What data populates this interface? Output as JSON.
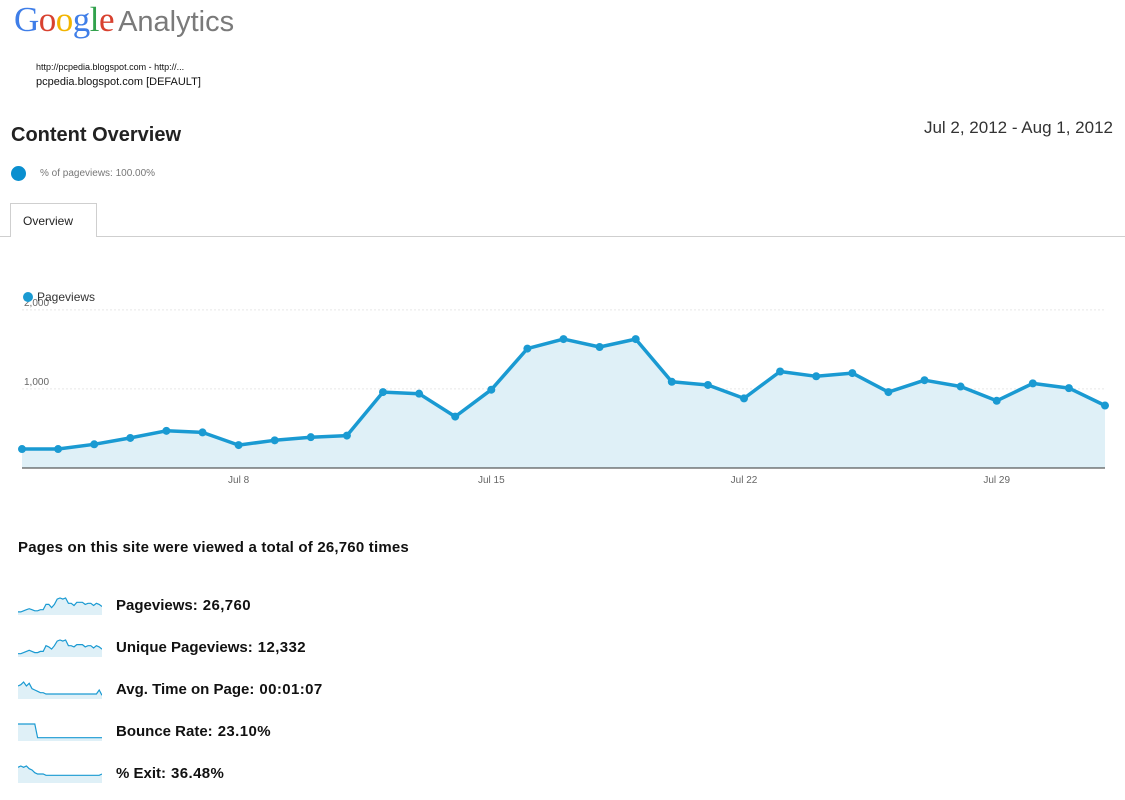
{
  "logo": {
    "google": "Google",
    "analytics": "Analytics"
  },
  "account": {
    "line1": "http://pcpedia.blogspot.com - http://...",
    "line2": "pcpedia.blogspot.com [DEFAULT]"
  },
  "page_title": "Content Overview",
  "date_range": "Jul 2, 2012 - Aug 1, 2012",
  "segment": {
    "text": "% of pageviews: 100.00%"
  },
  "tabs": [
    {
      "label": "Overview"
    }
  ],
  "colors": {
    "series": "#1a9ad2",
    "fill": "#dff0f7",
    "logo_blue": "#3f7ee8",
    "logo_red": "#d8412f",
    "logo_yellow": "#f2b400",
    "logo_green": "#31a14c"
  },
  "chart_data": {
    "type": "line",
    "legend": [
      "Pageviews"
    ],
    "legend_position": "top-left",
    "x": [
      "2012-07-02",
      "2012-07-03",
      "2012-07-04",
      "2012-07-05",
      "2012-07-06",
      "2012-07-07",
      "2012-07-08",
      "2012-07-09",
      "2012-07-10",
      "2012-07-11",
      "2012-07-12",
      "2012-07-13",
      "2012-07-14",
      "2012-07-15",
      "2012-07-16",
      "2012-07-17",
      "2012-07-18",
      "2012-07-19",
      "2012-07-20",
      "2012-07-21",
      "2012-07-22",
      "2012-07-23",
      "2012-07-24",
      "2012-07-25",
      "2012-07-26",
      "2012-07-27",
      "2012-07-28",
      "2012-07-29",
      "2012-07-30",
      "2012-07-31",
      "2012-08-01"
    ],
    "series": [
      {
        "name": "Pageviews",
        "values": [
          240,
          240,
          300,
          380,
          470,
          450,
          290,
          350,
          390,
          410,
          960,
          940,
          650,
          990,
          1510,
          1630,
          1530,
          1630,
          1090,
          1050,
          880,
          1220,
          1160,
          1200,
          960,
          1110,
          1030,
          850,
          1070,
          1010,
          790
        ]
      }
    ],
    "x_tick_labels": [
      "Jul 8",
      "Jul 15",
      "Jul 22",
      "Jul 29"
    ],
    "y_tick_labels": [
      "1,000",
      "2,000"
    ],
    "y_ticks": [
      1000,
      2000
    ],
    "ylim": [
      0,
      2200
    ],
    "grid": "horizontal"
  },
  "summary": {
    "headline": "Pages on this site were viewed a total of 26,760 times",
    "metrics": [
      {
        "label": "Pageviews:",
        "value": "26,760",
        "spark": [
          2,
          2,
          3,
          4,
          5,
          4,
          3,
          3,
          4,
          4,
          9,
          9,
          6,
          9,
          14,
          15,
          14,
          15,
          10,
          10,
          8,
          11,
          11,
          11,
          9,
          10,
          10,
          8,
          10,
          9,
          7
        ]
      },
      {
        "label": "Unique Pageviews:",
        "value": "12,332",
        "spark": [
          2,
          2,
          3,
          4,
          5,
          4,
          3,
          3,
          4,
          4,
          9,
          8,
          6,
          9,
          13,
          14,
          13,
          14,
          9,
          9,
          8,
          10,
          10,
          10,
          8,
          9,
          9,
          7,
          9,
          8,
          6
        ]
      },
      {
        "label": "Avg. Time on Page:",
        "value": "00:01:07",
        "spark": [
          9,
          10,
          12,
          9,
          11,
          7,
          6,
          5,
          4,
          4,
          3,
          3,
          3,
          3,
          3,
          3,
          3,
          3,
          3,
          3,
          3,
          3,
          3,
          3,
          3,
          3,
          3,
          3,
          3,
          6,
          2
        ]
      },
      {
        "label": "Bounce Rate:",
        "value": "23.10%",
        "spark": [
          14,
          14,
          14,
          14,
          14,
          14,
          14,
          2,
          2,
          2,
          2,
          2,
          2,
          2,
          2,
          2,
          2,
          2,
          2,
          2,
          2,
          2,
          2,
          2,
          2,
          2,
          2,
          2,
          2,
          2,
          2
        ]
      },
      {
        "label": "% Exit:",
        "value": "36.48%",
        "spark": [
          11,
          12,
          11,
          12,
          10,
          9,
          7,
          6,
          6,
          6,
          5,
          5,
          5,
          5,
          5,
          5,
          5,
          5,
          5,
          5,
          5,
          5,
          5,
          5,
          5,
          5,
          5,
          5,
          5,
          5,
          6
        ]
      }
    ]
  }
}
